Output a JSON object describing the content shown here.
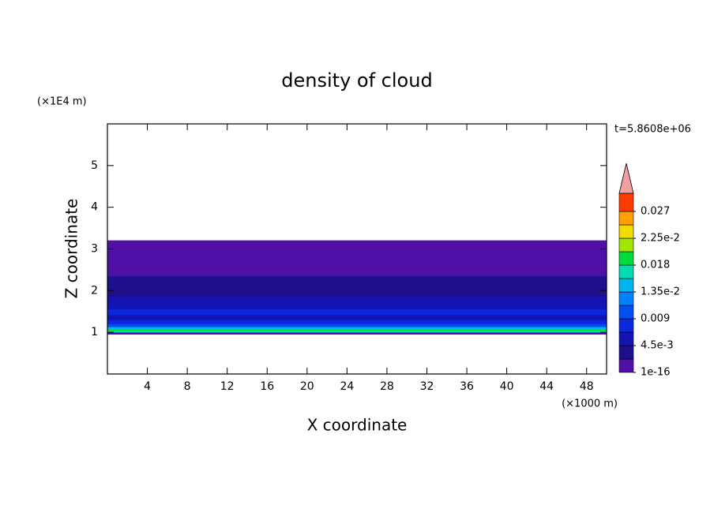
{
  "chart_data": {
    "type": "contour",
    "title": "density of cloud",
    "xlabel": "X coordinate",
    "ylabel": "Z coordinate",
    "x_unit_label": "(×1000 m)",
    "y_unit_label": "(×1E4 m)",
    "time_label": "t=5.8608e+06",
    "xlim": [
      0,
      50
    ],
    "ylim": [
      0,
      6
    ],
    "xticks": [
      4,
      8,
      12,
      16,
      20,
      24,
      28,
      32,
      36,
      40,
      44,
      48
    ],
    "yticks": [
      1,
      2,
      3,
      4,
      5
    ],
    "field": {
      "z": [
        0.95,
        1.0,
        1.04,
        1.08,
        1.13,
        1.2,
        1.3,
        1.42,
        1.55,
        1.7,
        1.85,
        2.0,
        2.15,
        2.35,
        2.6,
        3.2
      ],
      "values": [
        0.001,
        0.016,
        0.02,
        0.014,
        0.01,
        0.008,
        0.006,
        0.0075,
        0.006,
        0.005,
        0.0035,
        0.003,
        0.0028,
        0.002,
        0.001
      ]
    },
    "colorbar": {
      "levels": [
        1e-16,
        0.00225,
        0.0045,
        0.00675,
        0.009,
        0.01125,
        0.0135,
        0.01575,
        0.018,
        0.02025,
        0.0225,
        0.02475,
        0.027
      ],
      "colors": [
        "#5010a8",
        "#1e0f8c",
        "#1414b4",
        "#0a28dc",
        "#0050f0",
        "#0082ff",
        "#00b4f0",
        "#00dcb4",
        "#00dc3c",
        "#a0e600",
        "#f0dc00",
        "#ffa000",
        "#ff3c00"
      ],
      "extend_color": "#f0a0a0",
      "ticks": [
        1e-16,
        {
          "value": 0.0045,
          "label": "4.5e-3"
        },
        0.009,
        {
          "value": 0.0135,
          "label": "1.35e-2"
        },
        0.018,
        {
          "value": 0.0225,
          "label": "2.25e-2"
        },
        0.027
      ]
    }
  }
}
